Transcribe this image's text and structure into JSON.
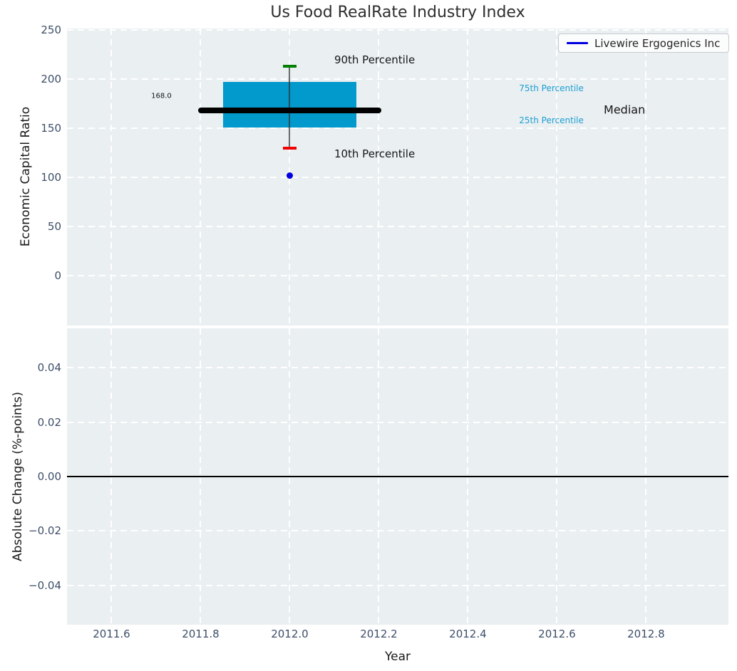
{
  "title": "Us Food RealRate Industry Index",
  "legend": {
    "label": "Livewire Ergogenics Inc",
    "line_color": "#0000e0"
  },
  "colors": {
    "axes_bg": "#eaeff1",
    "grid": "#ffffff",
    "tick_label": "#3d4e68",
    "box_fill": "#0299cc",
    "whisker": "rgba(45,45,45,0.7)",
    "cap_90": "#008000",
    "cap_10": "#f10000",
    "median": "#000000",
    "point": "#0000e0",
    "percentile_text": "#1c9fd4"
  },
  "x_axis": {
    "label": "Year",
    "xlim": [
      2011.5,
      2012.985
    ],
    "ticks": {
      "values": [
        2011.6,
        2011.8,
        2012.0,
        2012.2,
        2012.4,
        2012.6,
        2012.8
      ],
      "labels": [
        "2011.6",
        "2011.8",
        "2012.0",
        "2012.2",
        "2012.4",
        "2012.6",
        "2012.8"
      ]
    }
  },
  "chart_data": [
    {
      "type": "boxplot",
      "title": "Us Food RealRate Industry Index",
      "ylabel": "Economic Capital Ratio",
      "ylim": [
        -50.5,
        251.7
      ],
      "grid": "white dashed",
      "yticks": {
        "values": [
          0,
          50,
          100,
          150,
          200,
          250
        ],
        "labels": [
          "0",
          "50",
          "100",
          "150",
          "200",
          "250"
        ]
      },
      "box": {
        "center_x": 2012.0,
        "box_left_x": 2011.85,
        "box_right_x": 2012.15,
        "p10": 130,
        "p25": 151,
        "median": 168,
        "p75": 197,
        "p90": 213,
        "median_line_left_x": 2011.795,
        "median_line_right_x": 2012.205,
        "cap_half_width_years": 0.0155
      },
      "point": {
        "series": "Livewire Ergogenics Inc",
        "x": 2012.0,
        "y": 102
      },
      "annotations": [
        {
          "text": "90th Percentile",
          "x": 2012.1,
          "y": 220,
          "size": 15,
          "color": "#151515",
          "anchor": "left"
        },
        {
          "text": "10th Percentile",
          "x": 2012.1,
          "y": 124,
          "size": 15,
          "color": "#151515",
          "anchor": "left"
        },
        {
          "text": "75th Percentile",
          "x": 2012.515,
          "y": 191,
          "size": 12,
          "color": "#1c9fd4",
          "anchor": "left"
        },
        {
          "text": "25th Percentile",
          "x": 2012.515,
          "y": 158,
          "size": 12,
          "color": "#1c9fd4",
          "anchor": "left"
        },
        {
          "text": "Median",
          "x": 2012.705,
          "y": 169,
          "size": 16,
          "color": "#151515",
          "anchor": "left"
        },
        {
          "text": "168.0",
          "x": 2011.712,
          "y": 183,
          "size": 10,
          "color": "#151515",
          "anchor": "center"
        }
      ]
    },
    {
      "type": "line",
      "ylabel": "Absolute Change (%-points)",
      "ylim": [
        -0.0545,
        0.0545
      ],
      "grid": "white dashed",
      "yticks": {
        "values": [
          0.04,
          0.02,
          0.0,
          -0.02,
          -0.04
        ],
        "labels": [
          "0.04",
          "0.02",
          "0.00",
          "−0.02",
          "−0.04"
        ]
      },
      "zero_line": 0.0,
      "series": []
    }
  ]
}
